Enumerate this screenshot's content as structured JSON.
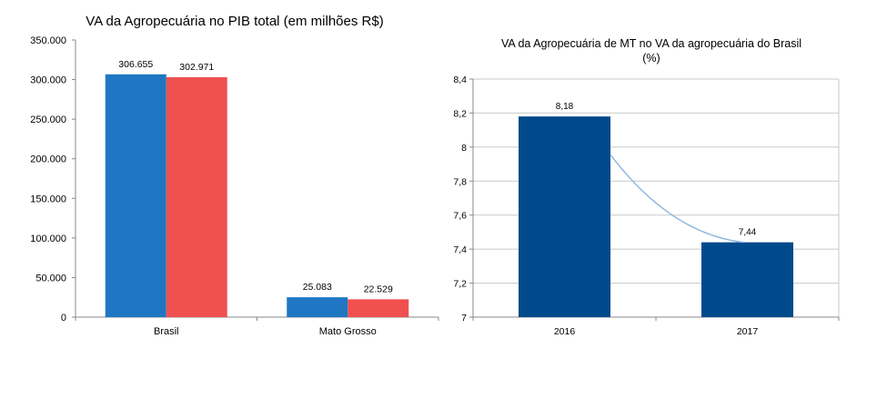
{
  "chart_data": [
    {
      "type": "bar",
      "title": "VA da Agropecuária no PIB total (em milhões R$)",
      "categories": [
        "Brasil",
        "Mato Grosso"
      ],
      "series": [
        {
          "values": [
            306655,
            25083
          ],
          "labels": [
            "306.655",
            "25.083"
          ],
          "color": "#1f77c4"
        },
        {
          "values": [
            302971,
            22529
          ],
          "labels": [
            "302.971",
            "22.529"
          ],
          "color": "#f05050"
        }
      ],
      "ylim": [
        0,
        350000
      ],
      "yticks": [
        0,
        50000,
        100000,
        150000,
        200000,
        250000,
        300000,
        350000
      ],
      "ytick_labels": [
        "0",
        "50.000",
        "100.000",
        "150.000",
        "200.000",
        "250.000",
        "300.000",
        "350.000"
      ],
      "grid": false
    },
    {
      "type": "bar",
      "title": "VA da Agropecuária de MT no VA da agropecuária do Brasil",
      "title_line2": "(%)",
      "categories": [
        "2016",
        "2017"
      ],
      "series": [
        {
          "values": [
            8.18,
            7.44
          ],
          "labels": [
            "8,18",
            "7,44"
          ],
          "color": "#004a8c"
        }
      ],
      "trendline": {
        "type": "line",
        "values": [
          8.18,
          7.44
        ],
        "color": "#90b8e0"
      },
      "ylim": [
        7,
        8.4
      ],
      "yticks": [
        7,
        7.2,
        7.4,
        7.6,
        7.8,
        8,
        8.2,
        8.4
      ],
      "ytick_labels": [
        "7",
        "7,2",
        "7,4",
        "7,6",
        "7,8",
        "8",
        "8,2",
        "8,4"
      ],
      "grid": true
    }
  ]
}
